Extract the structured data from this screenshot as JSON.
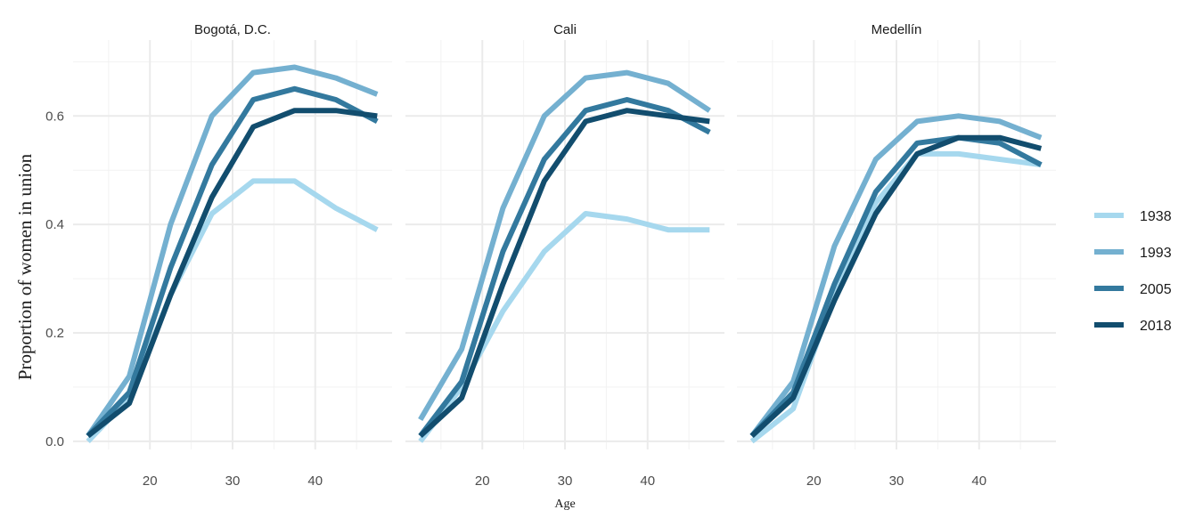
{
  "chart_data": {
    "type": "line",
    "facet": true,
    "xlabel": "Age",
    "ylabel": "Proportion of women in union",
    "xlim": [
      10.7,
      49.3
    ],
    "ylim": [
      -0.015,
      0.74
    ],
    "x_ticks": [
      20,
      30,
      40
    ],
    "y_ticks": [
      0.0,
      0.2,
      0.4,
      0.6
    ],
    "y_tick_labels": [
      "0.0",
      "0.2",
      "0.4",
      "0.6"
    ],
    "grid": true,
    "legend_position": "right",
    "x": [
      12.5,
      17.5,
      22.5,
      27.5,
      32.5,
      37.5,
      42.5,
      47.5
    ],
    "legend": [
      {
        "name": "1938",
        "color": "#a6d8ee"
      },
      {
        "name": "1993",
        "color": "#74b0d0"
      },
      {
        "name": "2005",
        "color": "#33799e"
      },
      {
        "name": "2018",
        "color": "#124d6e"
      }
    ],
    "panels": [
      {
        "title": "Bogotá, D.C.",
        "series": [
          {
            "name": "1938",
            "values": [
              0.0,
              0.08,
              0.27,
              0.42,
              0.48,
              0.48,
              0.43,
              0.39
            ]
          },
          {
            "name": "1993",
            "values": [
              0.01,
              0.12,
              0.4,
              0.6,
              0.68,
              0.69,
              0.67,
              0.64
            ]
          },
          {
            "name": "2005",
            "values": [
              0.01,
              0.09,
              0.32,
              0.51,
              0.63,
              0.65,
              0.63,
              0.59
            ]
          },
          {
            "name": "2018",
            "values": [
              0.01,
              0.07,
              0.27,
              0.45,
              0.58,
              0.61,
              0.61,
              0.6
            ]
          }
        ]
      },
      {
        "title": "Cali",
        "series": [
          {
            "name": "1938",
            "values": [
              0.0,
              0.1,
              0.24,
              0.35,
              0.42,
              0.41,
              0.39,
              0.39
            ]
          },
          {
            "name": "1993",
            "values": [
              0.04,
              0.17,
              0.43,
              0.6,
              0.67,
              0.68,
              0.66,
              0.61
            ]
          },
          {
            "name": "2005",
            "values": [
              0.01,
              0.11,
              0.35,
              0.52,
              0.61,
              0.63,
              0.61,
              0.57
            ]
          },
          {
            "name": "2018",
            "values": [
              0.01,
              0.08,
              0.29,
              0.48,
              0.59,
              0.61,
              0.6,
              0.59
            ]
          }
        ]
      },
      {
        "title": "Medellín",
        "series": [
          {
            "name": "1938",
            "values": [
              0.0,
              0.06,
              0.27,
              0.44,
              0.53,
              0.53,
              0.52,
              0.51
            ]
          },
          {
            "name": "1993",
            "values": [
              0.01,
              0.11,
              0.36,
              0.52,
              0.59,
              0.6,
              0.59,
              0.56
            ]
          },
          {
            "name": "2005",
            "values": [
              0.01,
              0.09,
              0.29,
              0.46,
              0.55,
              0.56,
              0.55,
              0.51
            ]
          },
          {
            "name": "2018",
            "values": [
              0.01,
              0.08,
              0.26,
              0.42,
              0.53,
              0.56,
              0.56,
              0.54
            ]
          }
        ]
      }
    ]
  }
}
